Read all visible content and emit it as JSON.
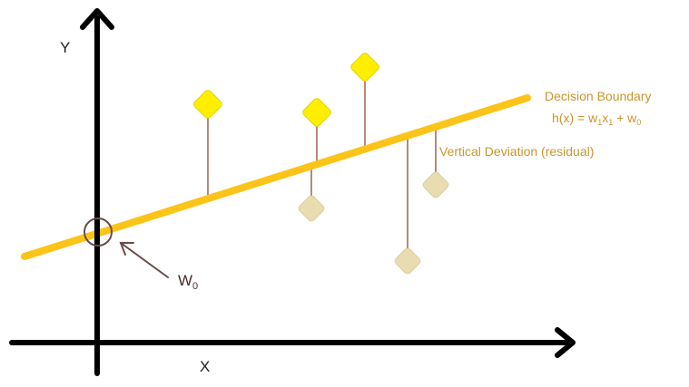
{
  "axes": {
    "y_label": "Y",
    "x_label": "X"
  },
  "labels": {
    "boundary_title": "Decision Boundary",
    "boundary_eq_h": "h(x) = w",
    "boundary_eq_sub1": "1",
    "boundary_eq_x": "x",
    "boundary_eq_sub2": "1",
    "boundary_eq_plus": " + w",
    "boundary_eq_sub0": "0",
    "residual": "Vertical Deviation (residual)",
    "intercept_w": "W",
    "intercept_sub": "0"
  },
  "colors": {
    "axis": "#000000",
    "line": "#fcc419",
    "point_above": "#ffee00",
    "point_below": "#e8dcb0",
    "residual_stem": "#b48a7a",
    "annotation_text": "#c9962e",
    "circle": "#6b4a4a"
  },
  "icons": {
    "intercept_marker": "circle",
    "points": "diamond",
    "axis_ends": "arrow"
  }
}
